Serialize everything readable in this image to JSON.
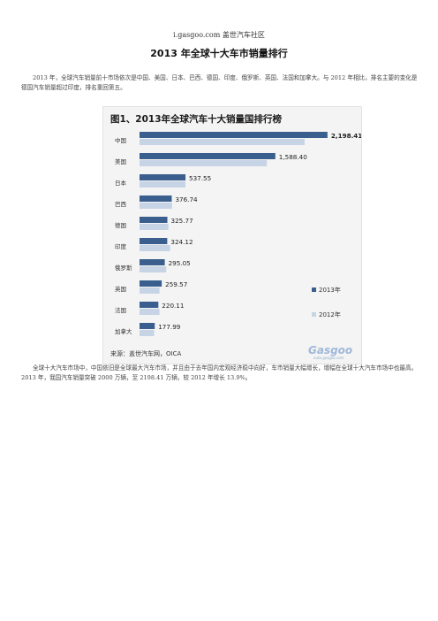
{
  "header": {
    "site": "i.gasgoo.com 盖世汽车社区"
  },
  "article": {
    "title": "2013 年全球十大车市销量排行",
    "paragraph1": "2013 年，全球汽车销量前十市场依次是中国、美国、日本、巴西、德国、印度、俄罗斯、英国、法国和加拿大。与 2012 年相比，排名主要的变化是德国汽车销量超过印度，排名重回第五。",
    "paragraph2": "全球十大汽车市场中，中国依旧是全球最大汽车市场，并且由于去年国内宏观经济稳中向好，车市销量大幅增长，增幅在全球十大汽车市场中也最高。2013 年，我国汽车销量突破 2000 万辆，至 2198.41 万辆，较 2012 年增长 13.9%。"
  },
  "chart_data": {
    "type": "bar",
    "orientation": "horizontal",
    "title": "图1、2013年全球汽车十大销量国排行榜",
    "categories": [
      "中国",
      "美国",
      "日本",
      "巴西",
      "德国",
      "印度",
      "俄罗斯",
      "英国",
      "法国",
      "加拿大"
    ],
    "series": [
      {
        "name": "2013年",
        "color": "#3a5f8e",
        "values": [
          2198.41,
          1588.4,
          537.55,
          376.74,
          325.77,
          324.12,
          295.05,
          259.57,
          220.11,
          177.99
        ]
      },
      {
        "name": "2012年",
        "color": "#c7d4e6",
        "values": [
          1930.6,
          1490.0,
          536.9,
          380.2,
          337.3,
          357.7,
          311.9,
          233.4,
          233.1,
          171.6
        ]
      }
    ],
    "value_labels": [
      "2,198.41万辆",
      "1,588.40",
      "537.55",
      "376.74",
      "325.77",
      "324.12",
      "295.05",
      "259.57",
      "220.11",
      "177.99"
    ],
    "xlim": [
      0,
      2200
    ],
    "grid": false,
    "legend_position": "bottom-right",
    "source": "来源：盖世汽车网，OICA",
    "watermark": {
      "logo": "Gasgoo",
      "url": "auto.gasgoo.com"
    }
  }
}
